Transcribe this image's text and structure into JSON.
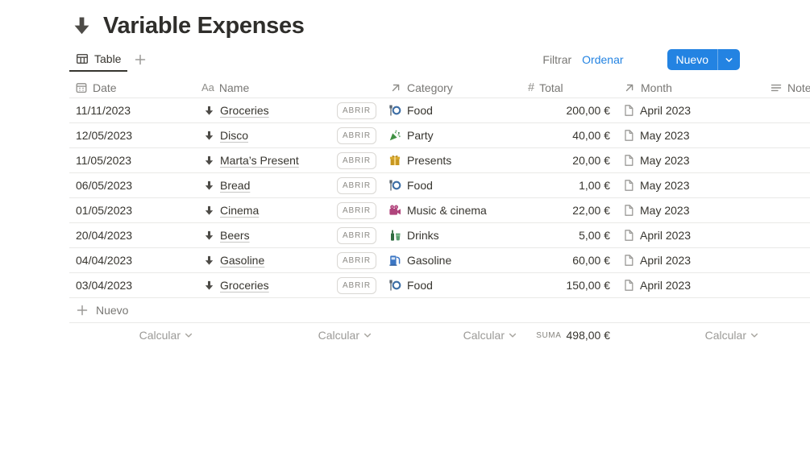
{
  "page": {
    "title": "Variable Expenses",
    "title_icon": "down-arrow-icon"
  },
  "toolbar": {
    "tabs": [
      {
        "label": "Table",
        "icon": "table-icon",
        "active": true
      }
    ],
    "filter_label": "Filtrar",
    "sort_label": "Ordenar",
    "new_button_label": "Nuevo"
  },
  "table": {
    "columns": [
      {
        "key": "date",
        "label": "Date",
        "icon": "calendar-icon"
      },
      {
        "key": "name",
        "label": "Name",
        "icon": "aa-icon"
      },
      {
        "key": "category",
        "label": "Category",
        "icon": "arrow-up-right-icon"
      },
      {
        "key": "total",
        "label": "Total",
        "icon": "hash-icon"
      },
      {
        "key": "month",
        "label": "Month",
        "icon": "lines-icon-arrow"
      },
      {
        "key": "notes",
        "label": "Notes",
        "icon": "lines-icon"
      }
    ],
    "open_button_label": "ABRIR",
    "rows": [
      {
        "date": "11/11/2023",
        "name": "Groceries",
        "category": {
          "icon": "food-emoji",
          "label": "Food"
        },
        "total": "200,00 €",
        "month": "April 2023",
        "notes": ""
      },
      {
        "date": "12/05/2023",
        "name": "Disco",
        "category": {
          "icon": "party-emoji",
          "label": "Party"
        },
        "total": "40,00 €",
        "month": "May 2023",
        "notes": ""
      },
      {
        "date": "11/05/2023",
        "name": "Marta’s Present",
        "category": {
          "icon": "gift-emoji",
          "label": "Presents"
        },
        "total": "20,00 €",
        "month": "May 2023",
        "notes": ""
      },
      {
        "date": "06/05/2023",
        "name": "Bread",
        "category": {
          "icon": "food-emoji",
          "label": "Food"
        },
        "total": "1,00 €",
        "month": "May 2023",
        "notes": ""
      },
      {
        "date": "01/05/2023",
        "name": "Cinema",
        "category": {
          "icon": "movie-camera-emoji",
          "label": "Music & cinema"
        },
        "total": "22,00 €",
        "month": "May 2023",
        "notes": ""
      },
      {
        "date": "20/04/2023",
        "name": "Beers",
        "category": {
          "icon": "drinks-emoji",
          "label": "Drinks"
        },
        "total": "5,00 €",
        "month": "April 2023",
        "notes": ""
      },
      {
        "date": "04/04/2023",
        "name": "Gasoline",
        "category": {
          "icon": "fuel-pump-emoji",
          "label": "Gasoline"
        },
        "total": "60,00 €",
        "month": "April 2023",
        "notes": ""
      },
      {
        "date": "03/04/2023",
        "name": "Groceries",
        "category": {
          "icon": "food-emoji",
          "label": "Food"
        },
        "total": "150,00 €",
        "month": "April 2023",
        "notes": ""
      }
    ],
    "new_row_label": "Nuevo",
    "footer": {
      "calculate_label": "Calcular",
      "sum_label": "SUMA",
      "sum_value": "498,00 €"
    }
  },
  "icons": {
    "down-arrow-icon": "solid downward arrow ⬇",
    "table-icon": "table grid",
    "plus-icon": "+",
    "bolt-icon": "⚡ lightning",
    "search-icon": "magnifying glass",
    "more-icon": "••• ellipsis",
    "chevron-down-icon": "⌄",
    "calendar-icon": "calendar",
    "aa-icon": "Aa",
    "arrow-up-right-icon": "↗",
    "hash-icon": "#",
    "lines-icon": "≡ text lines",
    "page-icon": "document page",
    "food-emoji": "🍽 fork and plate",
    "party-emoji": "🎉 party popper",
    "gift-emoji": "🎁 gift",
    "movie-camera-emoji": "🎥 movie camera",
    "drinks-emoji": "🍾 bottle and glass",
    "fuel-pump-emoji": "⛽ fuel pump"
  },
  "colors": {
    "accent_blue": "#2383e2",
    "text_dark": "#37352f",
    "text_gray": "#787774",
    "border": "#e9e9e7"
  }
}
